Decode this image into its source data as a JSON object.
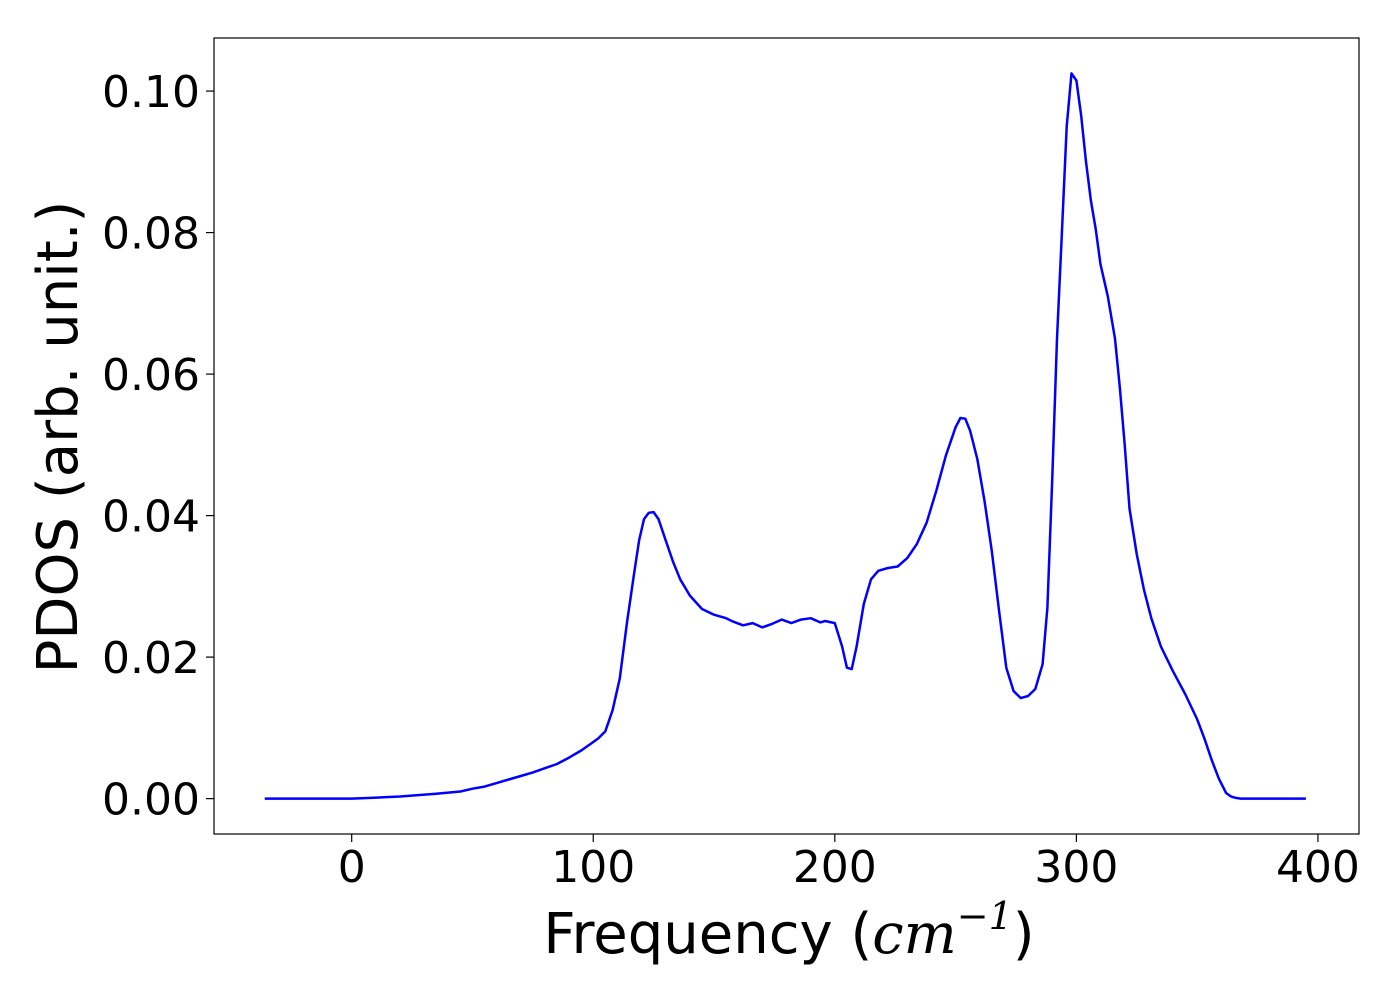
{
  "chart_data": {
    "type": "line",
    "title": "",
    "xlabel": "Frequency",
    "xlabel_paren_open": "(",
    "xlabel_unit_base": "cm",
    "xlabel_unit_exp": "−1",
    "xlabel_paren_close": ")",
    "ylabel": "PDOS (arb. unit.)",
    "xlim": [
      -57,
      417
    ],
    "ylim": [
      -0.005,
      0.1075
    ],
    "xticks": [
      0,
      100,
      200,
      300,
      400
    ],
    "xtick_labels": [
      "0",
      "100",
      "200",
      "300",
      "400"
    ],
    "yticks": [
      0.0,
      0.02,
      0.04,
      0.06,
      0.08,
      0.1
    ],
    "ytick_labels": [
      "0.00",
      "0.02",
      "0.04",
      "0.06",
      "0.08",
      "0.10"
    ],
    "grid": false,
    "legend": "none",
    "line_color": "#0000ff",
    "series": [
      {
        "x": [
          -36,
          -20,
          0,
          8,
          20,
          35,
          45,
          50,
          55,
          60,
          65,
          70,
          75,
          80,
          85,
          90,
          95,
          100,
          102,
          105,
          108,
          111,
          114,
          117,
          119,
          121,
          123,
          125,
          127,
          130,
          133,
          136,
          140,
          145,
          150,
          155,
          158,
          162,
          166,
          170,
          174,
          178,
          182,
          186,
          190,
          194,
          196,
          200,
          203,
          205,
          207,
          209,
          212,
          215,
          218,
          222,
          226,
          230,
          234,
          238,
          242,
          246,
          250,
          252,
          254,
          256,
          259,
          262,
          265,
          268,
          271,
          274,
          277,
          280,
          283,
          286,
          288,
          290,
          292,
          294,
          296,
          298,
          300,
          302,
          304,
          306,
          308,
          310,
          313,
          316,
          318,
          320,
          322,
          325,
          328,
          331,
          335,
          340,
          345,
          350,
          353,
          356,
          359,
          362,
          364,
          366,
          368,
          370,
          380,
          395
        ],
        "y": [
          0.0,
          0.0,
          0.0,
          0.0001,
          0.0003,
          0.0007,
          0.001,
          0.0014,
          0.0017,
          0.0022,
          0.0027,
          0.0032,
          0.0037,
          0.0043,
          0.0049,
          0.0058,
          0.0068,
          0.008,
          0.0085,
          0.0095,
          0.0125,
          0.017,
          0.025,
          0.032,
          0.0365,
          0.0395,
          0.0404,
          0.0405,
          0.0395,
          0.0365,
          0.0335,
          0.031,
          0.0287,
          0.0268,
          0.026,
          0.0255,
          0.025,
          0.0245,
          0.0248,
          0.0242,
          0.0247,
          0.0253,
          0.0248,
          0.0253,
          0.0255,
          0.0249,
          0.0251,
          0.0248,
          0.0215,
          0.0185,
          0.0183,
          0.0215,
          0.0275,
          0.031,
          0.0322,
          0.0326,
          0.0328,
          0.034,
          0.036,
          0.039,
          0.0435,
          0.0485,
          0.0525,
          0.0538,
          0.0537,
          0.052,
          0.048,
          0.042,
          0.035,
          0.0265,
          0.0185,
          0.0152,
          0.0142,
          0.0145,
          0.0155,
          0.019,
          0.027,
          0.045,
          0.065,
          0.08,
          0.095,
          0.1025,
          0.1015,
          0.0965,
          0.09,
          0.0845,
          0.0805,
          0.0755,
          0.071,
          0.065,
          0.058,
          0.05,
          0.041,
          0.0345,
          0.0295,
          0.0255,
          0.0215,
          0.018,
          0.0148,
          0.0112,
          0.0085,
          0.0055,
          0.0028,
          0.0008,
          0.0003,
          0.0001,
          0.0,
          0.0,
          0.0,
          0.0
        ]
      }
    ]
  }
}
